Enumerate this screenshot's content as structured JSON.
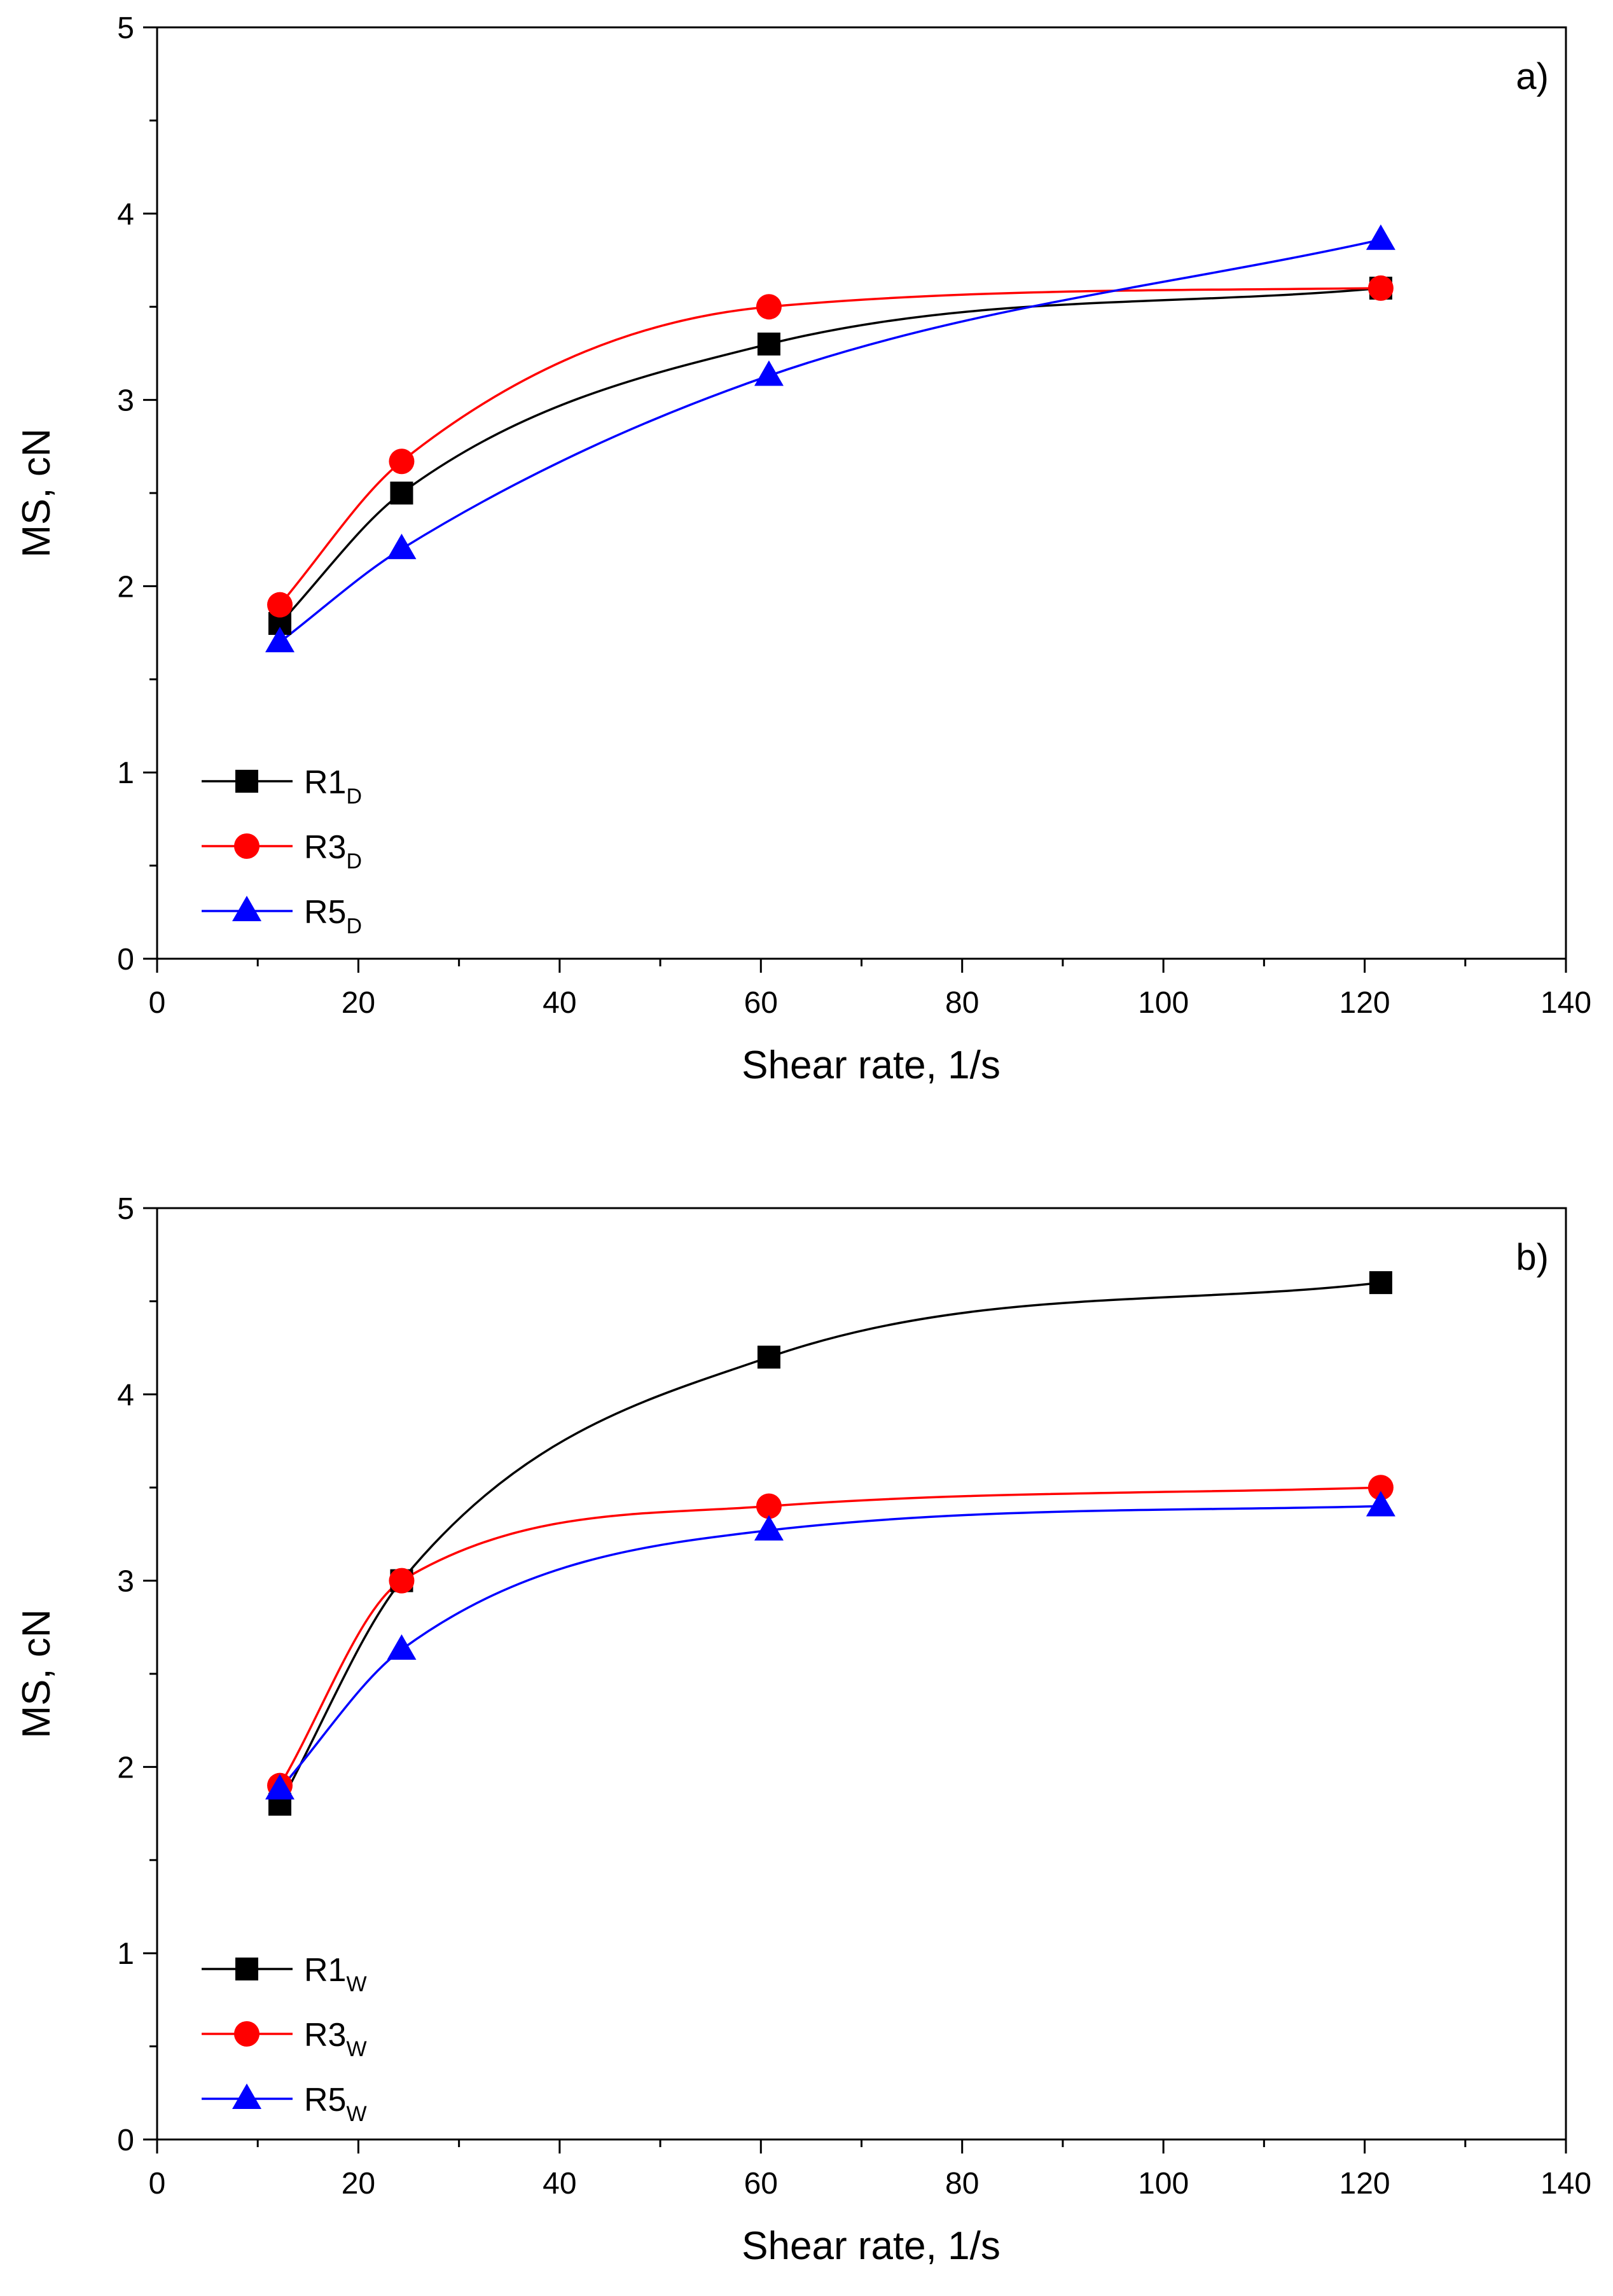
{
  "chart_data": [
    {
      "type": "line",
      "panel_label": "a)",
      "xlabel": "Shear rate, 1/s",
      "ylabel": "MS, cN",
      "xlim": [
        0,
        140
      ],
      "ylim": [
        0,
        5
      ],
      "xticks": [
        "0",
        "20",
        "40",
        "60",
        "80",
        "100",
        "120",
        "140"
      ],
      "yticks": [
        "0",
        "1",
        "2",
        "3",
        "4",
        "5"
      ],
      "grid": false,
      "legend_position": "bottom-left",
      "series": [
        {
          "name": "R1",
          "subscript": "D",
          "color": "#000000",
          "marker": "square",
          "x": [
            12.2,
            24.3,
            60.8,
            121.6
          ],
          "y": [
            1.8,
            2.5,
            3.3,
            3.6
          ]
        },
        {
          "name": "R3",
          "subscript": "D",
          "color": "#ff0000",
          "marker": "circle",
          "x": [
            12.2,
            24.3,
            60.8,
            121.6
          ],
          "y": [
            1.9,
            2.67,
            3.5,
            3.6
          ]
        },
        {
          "name": "R5",
          "subscript": "D",
          "color": "#0000ff",
          "marker": "triangle",
          "x": [
            12.2,
            24.3,
            60.8,
            121.6
          ],
          "y": [
            1.7,
            2.2,
            3.13,
            3.86
          ]
        }
      ]
    },
    {
      "type": "line",
      "panel_label": "b)",
      "xlabel": "Shear rate, 1/s",
      "ylabel": "MS, cN",
      "xlim": [
        0,
        140
      ],
      "ylim": [
        0,
        5
      ],
      "xticks": [
        "0",
        "20",
        "40",
        "60",
        "80",
        "100",
        "120",
        "140"
      ],
      "yticks": [
        "0",
        "1",
        "2",
        "3",
        "4",
        "5"
      ],
      "grid": false,
      "legend_position": "bottom-left",
      "series": [
        {
          "name": "R1",
          "subscript": "W",
          "color": "#000000",
          "marker": "square",
          "x": [
            12.2,
            24.3,
            60.8,
            121.6
          ],
          "y": [
            1.8,
            3.0,
            4.2,
            4.6
          ]
        },
        {
          "name": "R3",
          "subscript": "W",
          "color": "#ff0000",
          "marker": "circle",
          "x": [
            12.2,
            24.3,
            60.8,
            121.6
          ],
          "y": [
            1.9,
            3.0,
            3.4,
            3.5
          ]
        },
        {
          "name": "R5",
          "subscript": "W",
          "color": "#0000ff",
          "marker": "triangle",
          "x": [
            12.2,
            24.3,
            60.8,
            121.6
          ],
          "y": [
            1.88,
            2.63,
            3.27,
            3.4
          ]
        }
      ]
    }
  ]
}
